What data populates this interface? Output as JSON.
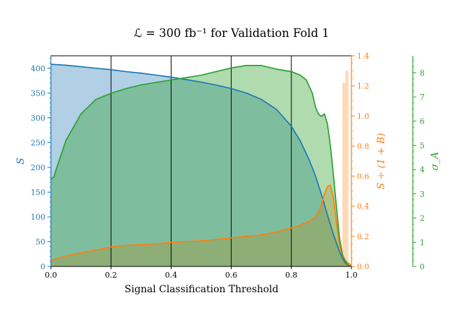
{
  "chart_data": {
    "type": "line",
    "title": "ℒ = 300 fb⁻¹ for Validation Fold 1",
    "xlabel": "Signal Classification Threshold",
    "xlim": [
      0.0,
      1.0
    ],
    "x_ticks": [
      "0.0",
      "0.2",
      "0.4",
      "0.6",
      "0.8",
      "1.0"
    ],
    "vertical_lines": [
      0.2,
      0.4,
      0.6,
      0.8
    ],
    "colors": {
      "S": "#1f77b4",
      "ratio": "#ff7f0e",
      "sigma": "#2ca02c"
    },
    "axes": {
      "left": {
        "label": "S",
        "ylim": [
          0,
          425
        ],
        "ticks": [
          "0",
          "50",
          "100",
          "150",
          "200",
          "250",
          "300",
          "350",
          "400"
        ]
      },
      "right1": {
        "label": "S ÷ (1 + B)",
        "ylim": [
          0.0,
          1.4
        ],
        "ticks": [
          "0.0",
          "0.2",
          "0.4",
          "0.6",
          "0.8",
          "1.0",
          "1.2",
          "1.4"
        ]
      },
      "right2": {
        "label": "σ_A",
        "ylim": [
          0,
          8.7
        ],
        "ticks": [
          "0",
          "1",
          "2",
          "3",
          "4",
          "5",
          "6",
          "7",
          "8"
        ]
      }
    },
    "series": [
      {
        "key": "S",
        "axis": "left",
        "x": [
          0.0,
          0.05,
          0.1,
          0.15,
          0.2,
          0.25,
          0.3,
          0.35,
          0.4,
          0.45,
          0.5,
          0.55,
          0.6,
          0.65,
          0.7,
          0.75,
          0.8,
          0.83,
          0.86,
          0.88,
          0.9,
          0.92,
          0.94,
          0.96,
          0.97,
          0.98,
          0.99,
          1.0
        ],
        "y": [
          408,
          406,
          403,
          400,
          397,
          393,
          390,
          386,
          382,
          377,
          372,
          366,
          359,
          350,
          337,
          317,
          283,
          253,
          214,
          183,
          146,
          104,
          65,
          30,
          16,
          7,
          2,
          0
        ]
      },
      {
        "key": "ratio",
        "axis": "right1",
        "x": [
          0.0,
          0.05,
          0.1,
          0.15,
          0.2,
          0.25,
          0.3,
          0.35,
          0.4,
          0.45,
          0.5,
          0.55,
          0.6,
          0.65,
          0.7,
          0.75,
          0.8,
          0.83,
          0.86,
          0.88,
          0.89,
          0.9,
          0.91,
          0.92,
          0.93,
          0.94,
          0.95,
          0.96,
          0.97,
          0.98,
          0.99,
          1.0
        ],
        "y": [
          0.04,
          0.07,
          0.09,
          0.11,
          0.13,
          0.14,
          0.145,
          0.15,
          0.16,
          0.165,
          0.17,
          0.18,
          0.19,
          0.2,
          0.21,
          0.23,
          0.255,
          0.275,
          0.3,
          0.33,
          0.36,
          0.41,
          0.48,
          0.53,
          0.54,
          0.46,
          0.3,
          0.14,
          0.07,
          0.04,
          0.02,
          0.01
        ]
      },
      {
        "key": "sigma",
        "axis": "right2",
        "x": [
          0.0,
          0.01,
          0.02,
          0.05,
          0.1,
          0.15,
          0.2,
          0.25,
          0.3,
          0.35,
          0.4,
          0.45,
          0.5,
          0.55,
          0.6,
          0.65,
          0.7,
          0.75,
          0.8,
          0.83,
          0.85,
          0.87,
          0.88,
          0.89,
          0.9,
          0.91,
          0.92,
          0.93,
          0.94,
          0.95,
          0.96,
          0.97,
          0.98,
          0.99,
          1.0
        ],
        "y": [
          3.6,
          3.7,
          4.1,
          5.2,
          6.3,
          6.9,
          7.15,
          7.35,
          7.5,
          7.6,
          7.7,
          7.8,
          7.9,
          8.05,
          8.2,
          8.3,
          8.3,
          8.15,
          8.05,
          7.9,
          7.7,
          7.15,
          6.6,
          6.3,
          6.2,
          6.3,
          5.9,
          5.0,
          3.8,
          2.5,
          1.2,
          0.5,
          0.2,
          0.05,
          0.0
        ]
      }
    ]
  }
}
